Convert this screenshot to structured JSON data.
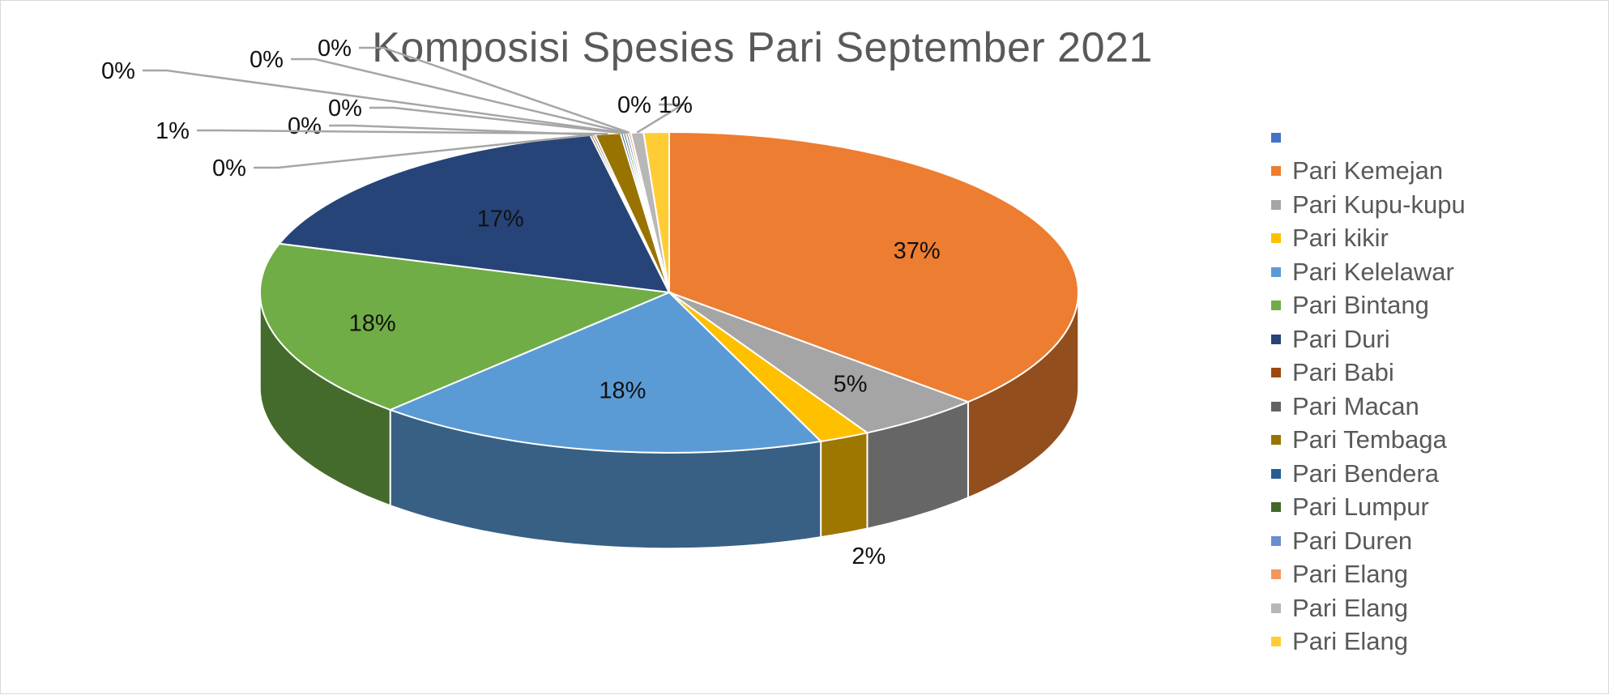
{
  "chart_data": {
    "type": "pie",
    "title": "Komposisi  Spesies Pari September 2021",
    "legend_position": "right",
    "three_d": true,
    "categories": [
      "",
      "Pari Kemejan",
      "Pari Kupu-kupu",
      "Pari kikir",
      "Pari Kelelawar",
      "Pari Bintang",
      "Pari Duri",
      "Pari Babi",
      "Pari Macan",
      "Pari Tembaga",
      "Pari Bendera",
      "Pari Lumpur",
      "Pari Duren",
      "Pari Elang",
      "Pari Elang",
      "Pari Elang"
    ],
    "values": [
      0,
      37,
      5,
      2,
      18,
      18,
      17,
      0.1,
      0.1,
      1,
      0.1,
      0.1,
      0.1,
      0.1,
      0.5,
      1
    ],
    "labels": [
      "",
      "37%",
      "5%",
      "2%",
      "18%",
      "18%",
      "17%",
      "0%",
      "0%",
      "1%",
      "0%",
      "0%",
      "0%",
      "0%",
      "0%",
      "1%"
    ],
    "colors": [
      "#4472c4",
      "#ed7d31",
      "#a5a5a5",
      "#ffc000",
      "#5b9bd5",
      "#70ad47",
      "#264478",
      "#9e480e",
      "#636363",
      "#997300",
      "#255e91",
      "#43682b",
      "#698ed0",
      "#f1975a",
      "#b7b7b7",
      "#ffcd33"
    ]
  }
}
